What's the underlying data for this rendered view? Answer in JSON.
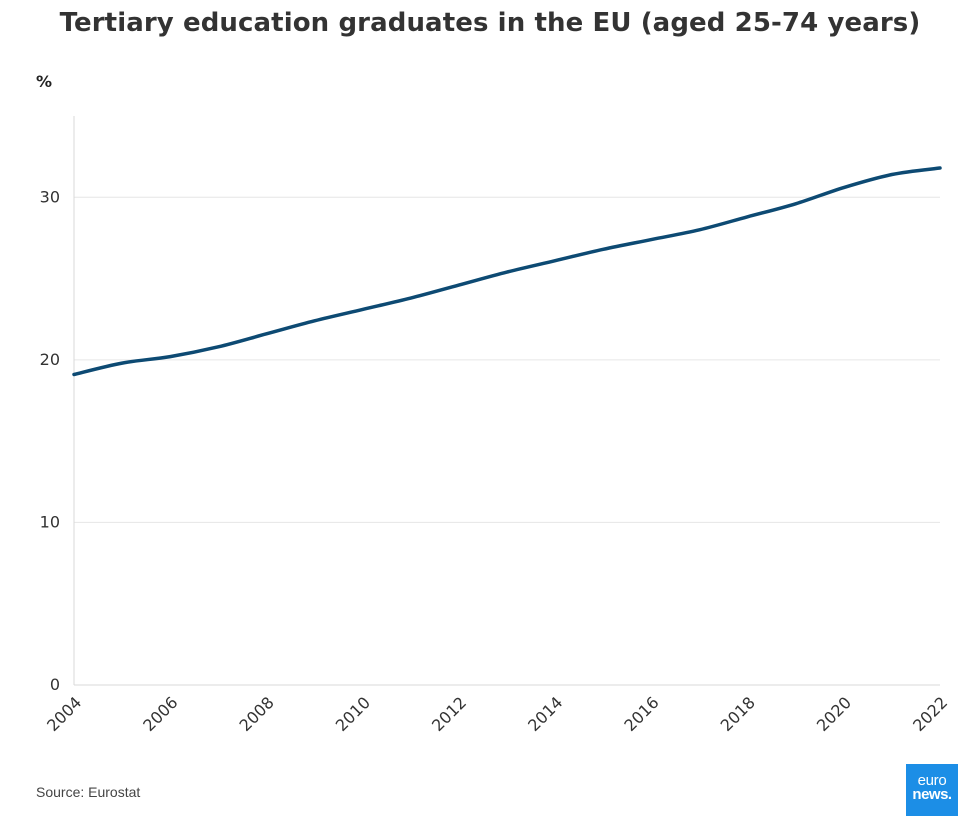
{
  "header": {
    "title": "Tertiary education graduates in the EU (aged 25-74 years)"
  },
  "footer": {
    "source": "Source: Eurostat"
  },
  "logo": {
    "line1": "euro",
    "line2": "news.",
    "color": "#1c8ee6"
  },
  "chart_data": {
    "type": "line",
    "title": "Tertiary education graduates in the EU (aged 25-74 years)",
    "ylabel": "%",
    "xlabel": "",
    "ylim": [
      0,
      35
    ],
    "xlim": [
      2004,
      2022
    ],
    "yticks": [
      0,
      10,
      20,
      30
    ],
    "xticks": [
      "2004",
      "2006",
      "2008",
      "2010",
      "2012",
      "2014",
      "2016",
      "2018",
      "2020",
      "2022"
    ],
    "grid": "horizontal",
    "line_color": "#0d4a73",
    "series": [
      {
        "x": [
          2004,
          2005,
          2006,
          2007,
          2008,
          2009,
          2010,
          2011,
          2012,
          2013,
          2014,
          2015,
          2016,
          2017,
          2018,
          2019,
          2020,
          2021,
          2022
        ],
        "values": [
          19.1,
          19.8,
          20.2,
          20.8,
          21.6,
          22.4,
          23.1,
          23.8,
          24.6,
          25.4,
          26.1,
          26.8,
          27.4,
          28.0,
          28.8,
          29.6,
          30.6,
          31.4,
          31.8
        ]
      }
    ]
  }
}
